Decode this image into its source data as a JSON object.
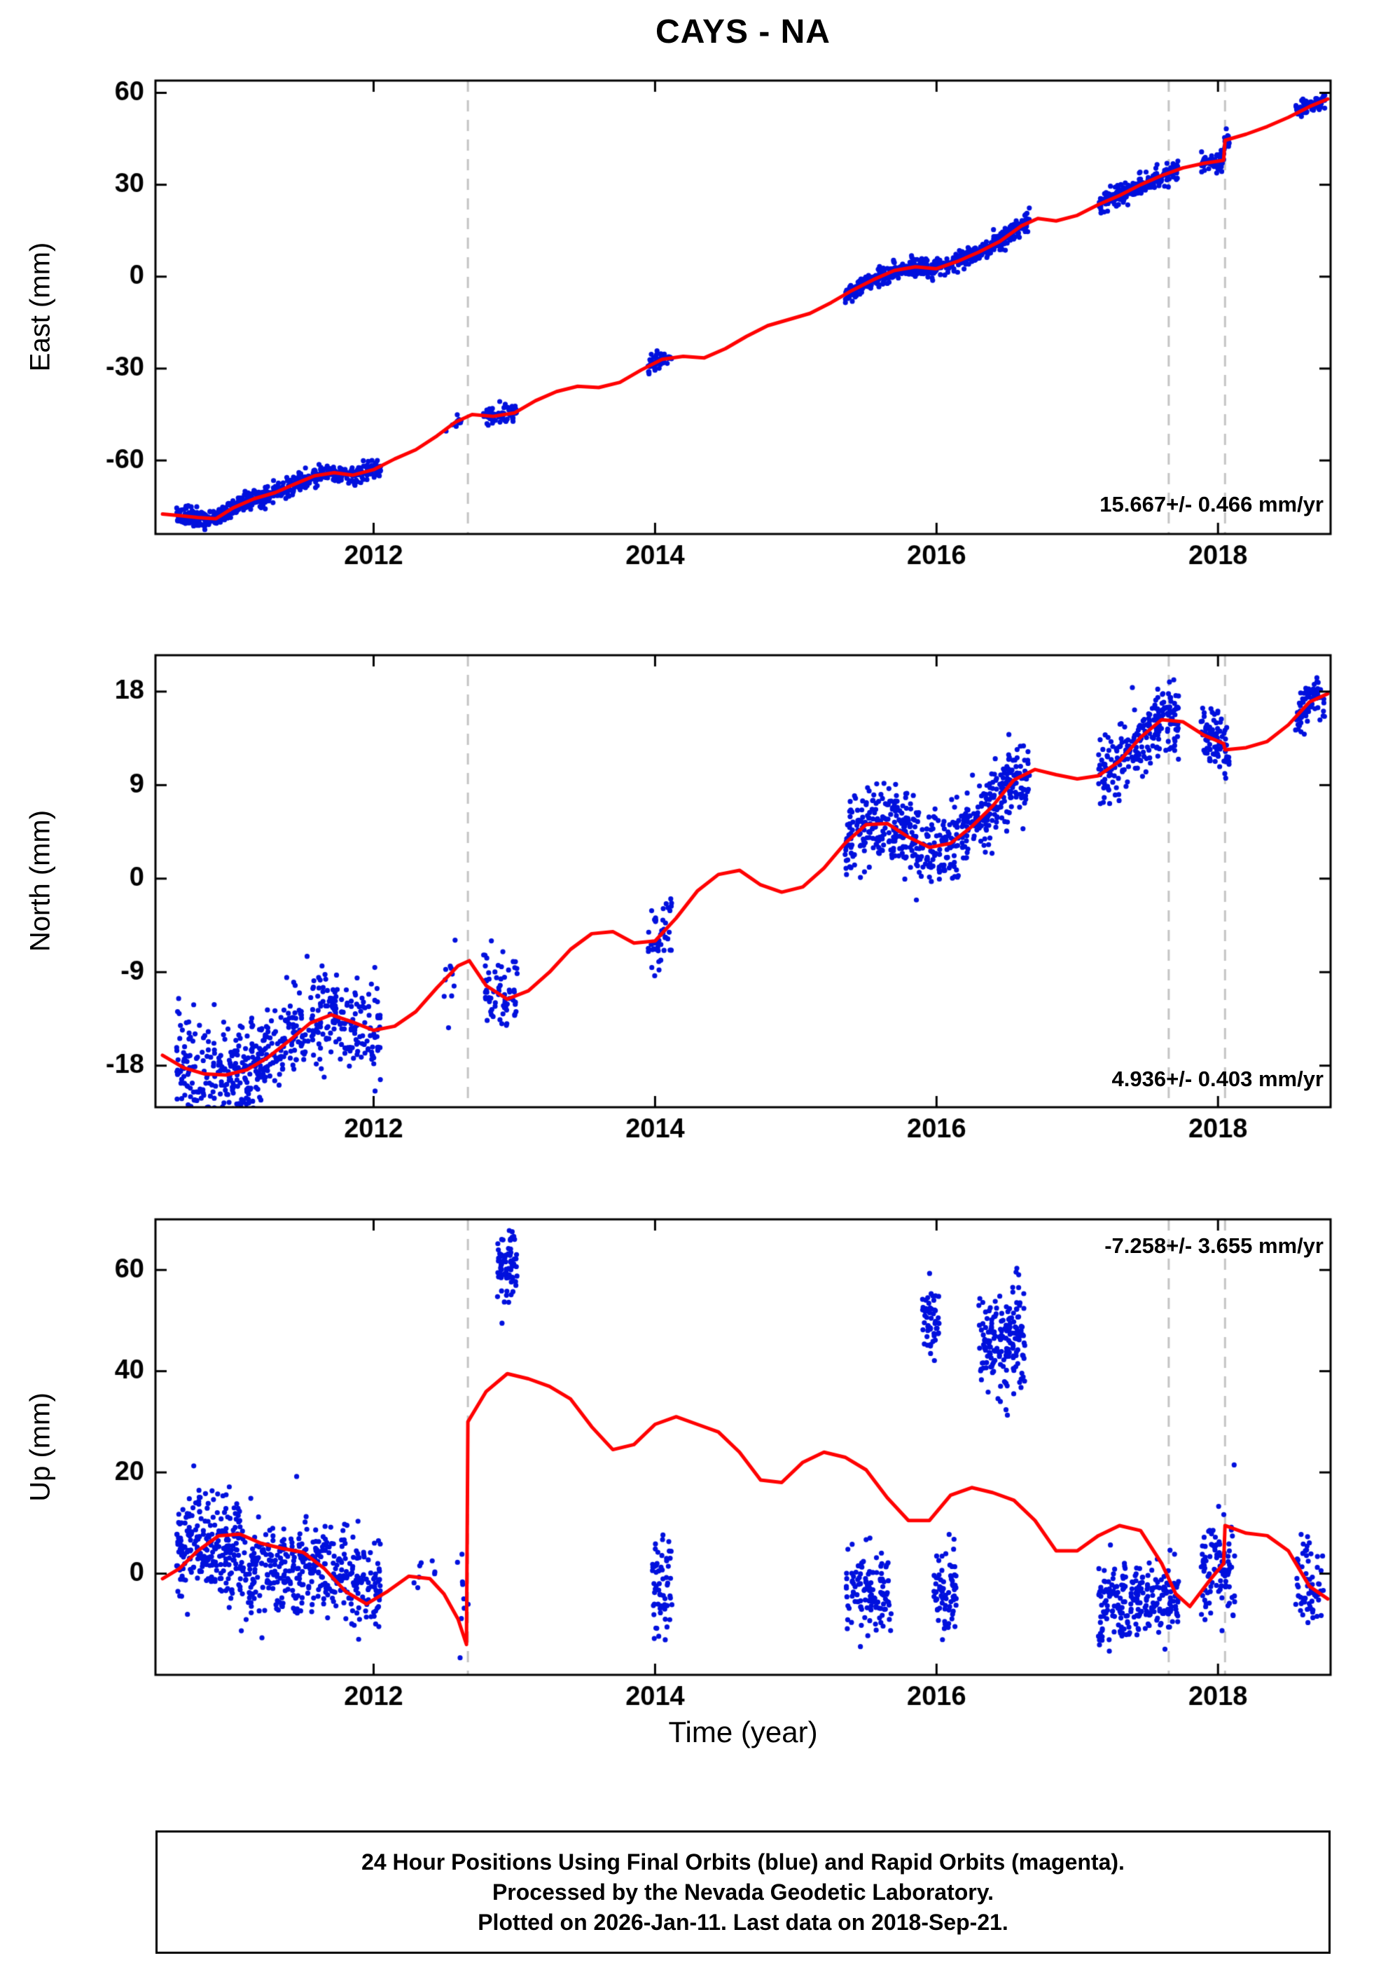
{
  "title": "CAYS - NA",
  "xlabel": "Time (year)",
  "footer": {
    "line1": "24 Hour Positions Using Final Orbits (blue) and Rapid Orbits (magenta).",
    "line2": "Processed by the Nevada Geodetic Laboratory.",
    "line3": "Plotted on 2026-Jan-11. Last data on 2018-Sep-21."
  },
  "colors": {
    "points": "#0010dd",
    "model": "#ff0000",
    "events": "#c4c4c4",
    "frame": "#000000"
  },
  "chart_data": [
    {
      "type": "scatter",
      "ylabel": "East (mm)",
      "rate_label": "15.667+/- 0.466 mm/yr",
      "rate_pos": "bottom-right",
      "xlim": [
        2010.45,
        2018.8
      ],
      "ylim": [
        -84,
        64
      ],
      "xticks": [
        2012,
        2014,
        2016,
        2018
      ],
      "yticks": [
        -60,
        -30,
        0,
        30,
        60
      ],
      "events": [
        2012.67,
        2017.65,
        2018.05
      ],
      "model_line": [
        [
          2010.5,
          -77.5
        ],
        [
          2010.62,
          -78
        ],
        [
          2010.75,
          -78.6
        ],
        [
          2010.88,
          -79
        ],
        [
          2011.0,
          -75.5
        ],
        [
          2011.15,
          -72.5
        ],
        [
          2011.3,
          -70.5
        ],
        [
          2011.45,
          -67.5
        ],
        [
          2011.58,
          -65
        ],
        [
          2011.72,
          -64
        ],
        [
          2011.85,
          -64.8
        ],
        [
          2012.0,
          -63
        ],
        [
          2012.15,
          -59.5
        ],
        [
          2012.3,
          -56.5
        ],
        [
          2012.45,
          -52
        ],
        [
          2012.58,
          -47.5
        ],
        [
          2012.7,
          -45
        ],
        [
          2012.85,
          -45.6
        ],
        [
          2013.0,
          -44.5
        ],
        [
          2013.15,
          -40.5
        ],
        [
          2013.3,
          -37.5
        ],
        [
          2013.45,
          -35.8
        ],
        [
          2013.6,
          -36.2
        ],
        [
          2013.75,
          -34.5
        ],
        [
          2013.9,
          -30.5
        ],
        [
          2014.05,
          -27
        ],
        [
          2014.2,
          -26
        ],
        [
          2014.35,
          -26.5
        ],
        [
          2014.5,
          -23.5
        ],
        [
          2014.65,
          -19.5
        ],
        [
          2014.8,
          -16
        ],
        [
          2014.95,
          -14
        ],
        [
          2015.1,
          -12
        ],
        [
          2015.25,
          -8.5
        ],
        [
          2015.4,
          -4.5
        ],
        [
          2015.55,
          -1
        ],
        [
          2015.7,
          2
        ],
        [
          2015.85,
          3.2
        ],
        [
          2016.0,
          2.6
        ],
        [
          2016.15,
          5
        ],
        [
          2016.3,
          8
        ],
        [
          2016.45,
          11.5
        ],
        [
          2016.6,
          16.5
        ],
        [
          2016.72,
          19
        ],
        [
          2016.85,
          18.2
        ],
        [
          2017.0,
          20
        ],
        [
          2017.15,
          23.5
        ],
        [
          2017.3,
          26.5
        ],
        [
          2017.45,
          30
        ],
        [
          2017.6,
          33
        ],
        [
          2017.75,
          35.5
        ],
        [
          2017.9,
          37
        ],
        [
          2018.04,
          38
        ],
        [
          2018.05,
          44.5
        ],
        [
          2018.2,
          46.5
        ],
        [
          2018.35,
          49
        ],
        [
          2018.5,
          52
        ],
        [
          2018.65,
          55.5
        ],
        [
          2018.78,
          58
        ]
      ],
      "scatter_clusters": [
        [
          2010.6,
          2011.3,
          300,
          null,
          1.5
        ],
        [
          2011.3,
          2012.05,
          260,
          null,
          1.5
        ],
        [
          2012.5,
          2012.63,
          10,
          null,
          1.5
        ],
        [
          2012.78,
          2013.02,
          70,
          null,
          1.5
        ],
        [
          2013.95,
          2014.12,
          45,
          null,
          1.3
        ],
        [
          2015.35,
          2015.75,
          170,
          null,
          1.4
        ],
        [
          2015.75,
          2016.05,
          120,
          null,
          1.4
        ],
        [
          2016.05,
          2016.38,
          130,
          null,
          1.4
        ],
        [
          2016.38,
          2016.66,
          120,
          null,
          1.6
        ],
        [
          2017.15,
          2017.72,
          230,
          null,
          1.6
        ],
        [
          2017.88,
          2018.08,
          85,
          null,
          1.4
        ],
        [
          2018.55,
          2018.76,
          70,
          null,
          1.3
        ]
      ]
    },
    {
      "type": "scatter",
      "ylabel": "North (mm)",
      "rate_label": "4.936+/- 0.403 mm/yr",
      "rate_pos": "bottom-right",
      "xlim": [
        2010.45,
        2018.8
      ],
      "ylim": [
        -22,
        21.5
      ],
      "xticks": [
        2012,
        2014,
        2016,
        2018
      ],
      "yticks": [
        -18,
        -9,
        0,
        9,
        18
      ],
      "events": [
        2012.67,
        2017.65,
        2018.05
      ],
      "model_line": [
        [
          2010.5,
          -17
        ],
        [
          2010.65,
          -18.2
        ],
        [
          2010.8,
          -18.8
        ],
        [
          2010.95,
          -18.9
        ],
        [
          2011.1,
          -18.4
        ],
        [
          2011.25,
          -17.2
        ],
        [
          2011.4,
          -15.6
        ],
        [
          2011.55,
          -13.9
        ],
        [
          2011.7,
          -13.1
        ],
        [
          2011.85,
          -13.8
        ],
        [
          2012.0,
          -14.6
        ],
        [
          2012.15,
          -14.2
        ],
        [
          2012.3,
          -12.8
        ],
        [
          2012.45,
          -10.5
        ],
        [
          2012.6,
          -8.4
        ],
        [
          2012.68,
          -7.9
        ],
        [
          2012.8,
          -10.3
        ],
        [
          2012.95,
          -11.6
        ],
        [
          2013.1,
          -10.8
        ],
        [
          2013.25,
          -9
        ],
        [
          2013.4,
          -6.8
        ],
        [
          2013.55,
          -5.3
        ],
        [
          2013.7,
          -5.1
        ],
        [
          2013.85,
          -6.2
        ],
        [
          2014.0,
          -6
        ],
        [
          2014.15,
          -3.8
        ],
        [
          2014.3,
          -1.2
        ],
        [
          2014.45,
          0.4
        ],
        [
          2014.6,
          0.8
        ],
        [
          2014.75,
          -0.6
        ],
        [
          2014.9,
          -1.3
        ],
        [
          2015.05,
          -0.8
        ],
        [
          2015.2,
          1
        ],
        [
          2015.35,
          3.4
        ],
        [
          2015.5,
          5.2
        ],
        [
          2015.65,
          5.3
        ],
        [
          2015.8,
          4
        ],
        [
          2015.95,
          3
        ],
        [
          2016.1,
          3.4
        ],
        [
          2016.25,
          5
        ],
        [
          2016.4,
          7
        ],
        [
          2016.55,
          9.5
        ],
        [
          2016.7,
          10.5
        ],
        [
          2016.85,
          10
        ],
        [
          2017.0,
          9.6
        ],
        [
          2017.15,
          9.9
        ],
        [
          2017.3,
          11.3
        ],
        [
          2017.45,
          13.6
        ],
        [
          2017.6,
          15.3
        ],
        [
          2017.75,
          15.1
        ],
        [
          2017.9,
          13.8
        ],
        [
          2018.04,
          13
        ],
        [
          2018.05,
          12.4
        ],
        [
          2018.2,
          12.6
        ],
        [
          2018.35,
          13.2
        ],
        [
          2018.5,
          14.8
        ],
        [
          2018.65,
          17
        ],
        [
          2018.78,
          17.8
        ]
      ],
      "scatter_clusters": [
        [
          2010.6,
          2011.3,
          300,
          null,
          2.3
        ],
        [
          2011.3,
          2012.05,
          260,
          null,
          2.2
        ],
        [
          2012.5,
          2012.63,
          10,
          null,
          2.0
        ],
        [
          2012.78,
          2013.02,
          70,
          null,
          2.0
        ],
        [
          2013.95,
          2014.12,
          45,
          null,
          2.0
        ],
        [
          2015.35,
          2015.75,
          170,
          null,
          1.9
        ],
        [
          2015.75,
          2016.05,
          120,
          null,
          1.9
        ],
        [
          2016.05,
          2016.38,
          130,
          null,
          1.7
        ],
        [
          2016.38,
          2016.66,
          120,
          null,
          1.8
        ],
        [
          2017.15,
          2017.72,
          230,
          null,
          1.9
        ],
        [
          2017.88,
          2018.08,
          85,
          null,
          1.3
        ],
        [
          2018.55,
          2018.76,
          70,
          null,
          1.2
        ]
      ]
    },
    {
      "type": "scatter",
      "ylabel": "Up (mm)",
      "rate_label": "-7.258+/- 3.655 mm/yr",
      "rate_pos": "top-right",
      "xlim": [
        2010.45,
        2018.8
      ],
      "ylim": [
        -20,
        70
      ],
      "xticks": [
        2012,
        2014,
        2016,
        2018
      ],
      "yticks": [
        0,
        20,
        40,
        60
      ],
      "events": [
        2012.67,
        2017.65,
        2018.05
      ],
      "model_line": [
        [
          2010.5,
          -1
        ],
        [
          2010.62,
          1
        ],
        [
          2010.75,
          4.5
        ],
        [
          2010.9,
          7.5
        ],
        [
          2011.05,
          7.8
        ],
        [
          2011.2,
          6
        ],
        [
          2011.35,
          5
        ],
        [
          2011.5,
          4.2
        ],
        [
          2011.65,
          1
        ],
        [
          2011.8,
          -3.5
        ],
        [
          2011.95,
          -6
        ],
        [
          2012.1,
          -3.5
        ],
        [
          2012.25,
          -0.5
        ],
        [
          2012.4,
          -1
        ],
        [
          2012.5,
          -4
        ],
        [
          2012.6,
          -9
        ],
        [
          2012.66,
          -14
        ],
        [
          2012.67,
          30
        ],
        [
          2012.8,
          36
        ],
        [
          2012.95,
          39.5
        ],
        [
          2013.1,
          38.5
        ],
        [
          2013.25,
          37
        ],
        [
          2013.4,
          34.5
        ],
        [
          2013.55,
          29
        ],
        [
          2013.7,
          24.5
        ],
        [
          2013.85,
          25.5
        ],
        [
          2014.0,
          29.5
        ],
        [
          2014.15,
          31
        ],
        [
          2014.3,
          29.5
        ],
        [
          2014.45,
          28
        ],
        [
          2014.6,
          24
        ],
        [
          2014.75,
          18.5
        ],
        [
          2014.9,
          18
        ],
        [
          2015.05,
          22
        ],
        [
          2015.2,
          24
        ],
        [
          2015.35,
          23
        ],
        [
          2015.5,
          20.5
        ],
        [
          2015.65,
          15
        ],
        [
          2015.8,
          10.5
        ],
        [
          2015.95,
          10.5
        ],
        [
          2016.1,
          15.5
        ],
        [
          2016.25,
          17
        ],
        [
          2016.4,
          16
        ],
        [
          2016.55,
          14.5
        ],
        [
          2016.7,
          10.5
        ],
        [
          2016.85,
          4.5
        ],
        [
          2017.0,
          4.5
        ],
        [
          2017.15,
          7.5
        ],
        [
          2017.3,
          9.5
        ],
        [
          2017.45,
          8.5
        ],
        [
          2017.6,
          2
        ],
        [
          2017.7,
          -4
        ],
        [
          2017.8,
          -6.5
        ],
        [
          2017.95,
          -1
        ],
        [
          2018.04,
          2
        ],
        [
          2018.05,
          9.5
        ],
        [
          2018.2,
          8
        ],
        [
          2018.35,
          7.5
        ],
        [
          2018.5,
          4.5
        ],
        [
          2018.65,
          -2.5
        ],
        [
          2018.78,
          -5
        ]
      ],
      "scatter_clusters": [
        [
          2010.6,
          2011.05,
          240,
          6,
          5
        ],
        [
          2011.05,
          2011.5,
          190,
          0.5,
          4.5
        ],
        [
          2011.5,
          2011.8,
          120,
          1.5,
          4.5
        ],
        [
          2011.8,
          2012.05,
          90,
          -2.5,
          4.5
        ],
        [
          2012.28,
          2012.45,
          8,
          2,
          3
        ],
        [
          2012.55,
          2012.68,
          9,
          -3,
          6
        ],
        [
          2012.88,
          2013.02,
          75,
          60,
          4
        ],
        [
          2013.98,
          2014.12,
          60,
          -3,
          6
        ],
        [
          2015.35,
          2015.68,
          120,
          -3.5,
          4
        ],
        [
          2015.9,
          2016.02,
          55,
          50,
          3.5
        ],
        [
          2015.98,
          2016.14,
          75,
          -3.5,
          4
        ],
        [
          2016.3,
          2016.63,
          180,
          46,
          5
        ],
        [
          2017.15,
          2017.72,
          240,
          -5,
          4
        ],
        [
          2017.88,
          2018.12,
          95,
          1,
          5
        ],
        [
          2018.55,
          2018.76,
          65,
          -2.5,
          4
        ]
      ]
    }
  ]
}
